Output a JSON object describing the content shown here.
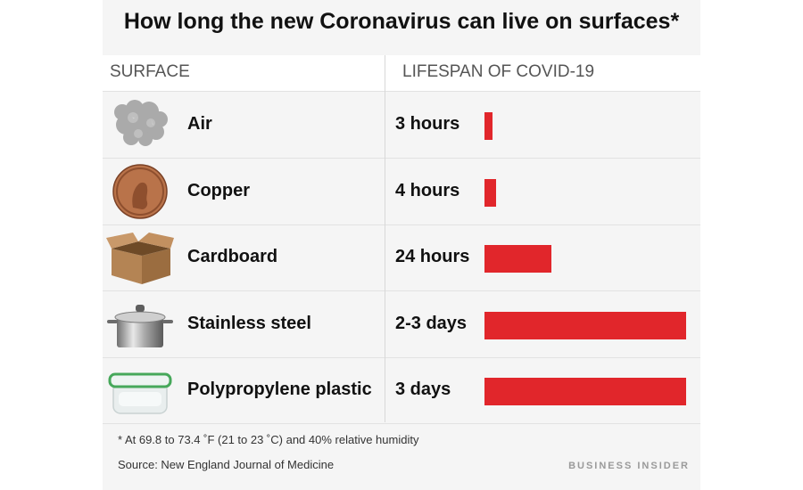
{
  "chart_data": {
    "type": "bar",
    "title": "How long the new Coronavirus can live on surfaces*",
    "columns": [
      "SURFACE",
      "LIFESPAN OF COVID-19"
    ],
    "categories": [
      "Air",
      "Copper",
      "Cardboard",
      "Stainless steel",
      "Polypropylene plastic"
    ],
    "value_labels": [
      "3 hours",
      "4 hours",
      "24 hours",
      "2-3  days",
      "3 days"
    ],
    "values": [
      3,
      4,
      24,
      72,
      72
    ],
    "unit": "hours",
    "bar_color": "#e1262b",
    "icons": [
      "air-cloud-icon",
      "copper-penny-icon",
      "cardboard-box-icon",
      "stainless-steel-pot-icon",
      "plastic-container-icon"
    ],
    "footnote": "* At 69.8 to 73.4 ˚F (21 to 23 ˚C) and 40% relative humidity",
    "source": "Source: New England Journal of Medicine",
    "brand": "BUSINESS INSIDER"
  }
}
